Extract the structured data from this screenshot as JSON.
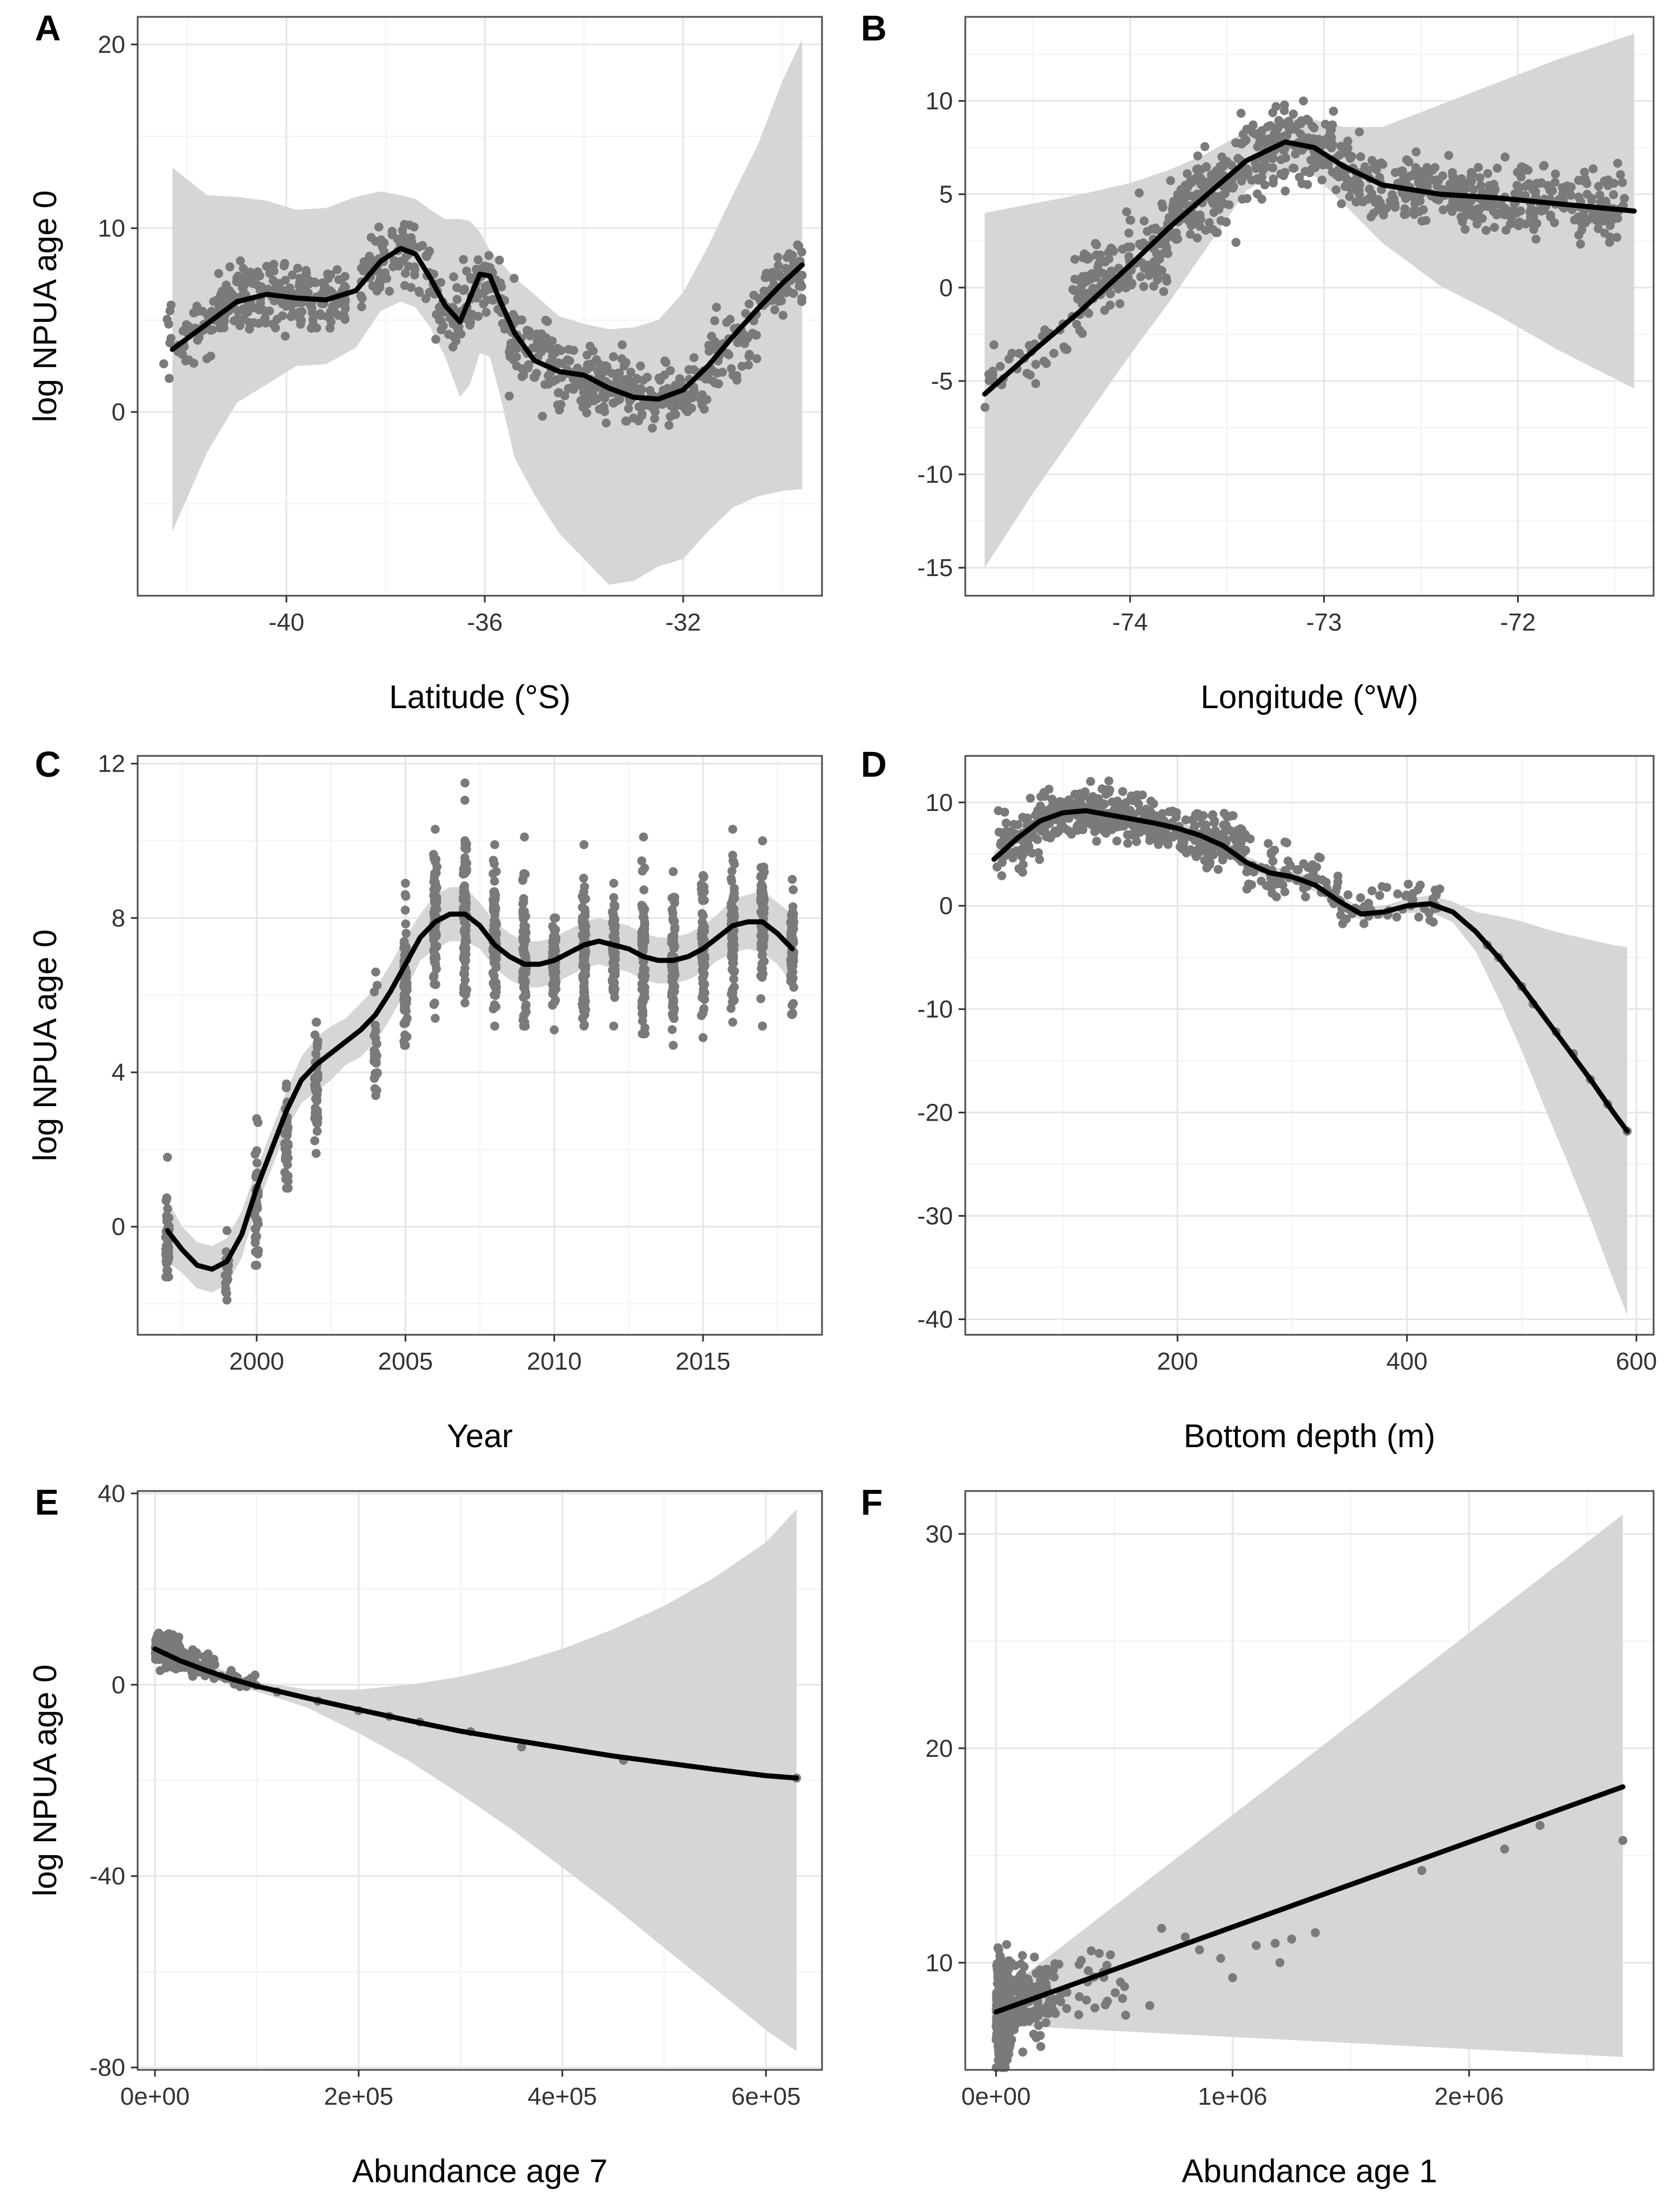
{
  "figure": {
    "style": {
      "point_color": "#7a7a7a",
      "band_color": "#d6d6d6",
      "line_color": "#000000",
      "grid_color": "#e6e6e6",
      "frame_color": "#4d4d4d"
    }
  },
  "chart_data": [
    {
      "panel": "A",
      "type": "scatter",
      "xlabel": "Latitude (°S)",
      "ylabel": "log NPUA age 0",
      "xlim": [
        -43,
        -29.2
      ],
      "ylim": [
        -10,
        21.5
      ],
      "xticks": [
        -40,
        -36,
        -32
      ],
      "xtick_labels": [
        "-40",
        "-36",
        "-32"
      ],
      "yticks": [
        0,
        10,
        20
      ],
      "ytick_labels": [
        "0",
        "10",
        "20"
      ],
      "fit": {
        "x": [
          -42.3,
          -41.6,
          -41,
          -40.4,
          -39.8,
          -39.2,
          -38.6,
          -38.1,
          -37.7,
          -37.4,
          -37.1,
          -36.8,
          -36.5,
          -36.3,
          -36.1,
          -35.9,
          -35.7,
          -35.4,
          -35,
          -34.5,
          -34,
          -33.5,
          -33,
          -32.5,
          -32,
          -31.5,
          -31,
          -30.5,
          -30,
          -29.6
        ],
        "y": [
          3.4,
          4.8,
          6.0,
          6.4,
          6.2,
          6.1,
          6.6,
          8.2,
          8.9,
          8.6,
          7.3,
          5.8,
          4.9,
          6.2,
          7.5,
          7.4,
          6.1,
          4.3,
          2.8,
          2.2,
          2.0,
          1.3,
          0.8,
          0.7,
          1.2,
          2.5,
          4.1,
          5.6,
          7.0,
          8.0
        ]
      },
      "ci_upper": [
        13.3,
        11.8,
        11.7,
        11.5,
        11.0,
        11.1,
        11.7,
        12.0,
        11.8,
        11.6,
        11.0,
        10.5,
        10.5,
        10.4,
        9.8,
        8.8,
        8.2,
        7.3,
        6.4,
        5.2,
        4.8,
        4.5,
        4.6,
        5.0,
        6.5,
        9.0,
        11.8,
        14.5,
        18.0,
        20.3
      ],
      "ci_lower": [
        -6.5,
        -2.2,
        0.5,
        1.5,
        2.5,
        2.6,
        3.5,
        5.5,
        6.0,
        5.7,
        4.6,
        3.0,
        0.8,
        1.5,
        3.2,
        3.0,
        1.0,
        -2.5,
        -4.5,
        -6.6,
        -8.0,
        -9.4,
        -9.2,
        -8.4,
        -8.0,
        -6.5,
        -5.2,
        -4.6,
        -4.3,
        -4.2
      ],
      "scatter_groups": [
        {
          "x": [
            -42.5,
            -41.5
          ],
          "n": 40,
          "mean": 4.3,
          "sd": 0.9
        },
        {
          "x": [
            -41.5,
            -38.8
          ],
          "n": 230,
          "mean": 6.2,
          "sd": 0.9
        },
        {
          "x": [
            -38.5,
            -37.0
          ],
          "n": 90,
          "mean": 8.4,
          "sd": 1.0
        },
        {
          "x": [
            -37.0,
            -36.3
          ],
          "n": 45,
          "mean": 5.2,
          "sd": 1.0
        },
        {
          "x": [
            -36.3,
            -35.6
          ],
          "n": 50,
          "mean": 7.2,
          "sd": 1.0
        },
        {
          "x": [
            -35.6,
            -34.5
          ],
          "n": 90,
          "mean": 3.4,
          "sd": 1.1
        },
        {
          "x": [
            -34.5,
            -33.0
          ],
          "n": 130,
          "mean": 1.6,
          "sd": 0.9
        },
        {
          "x": [
            -33.0,
            -31.5
          ],
          "n": 100,
          "mean": 0.7,
          "sd": 0.8
        },
        {
          "x": [
            -31.5,
            -30.5
          ],
          "n": 60,
          "mean": 3.2,
          "sd": 0.9
        },
        {
          "x": [
            -30.5,
            -29.6
          ],
          "n": 60,
          "mean": 7.0,
          "sd": 0.9
        }
      ]
    },
    {
      "panel": "B",
      "type": "scatter",
      "xlabel": "Longitude (°W)",
      "ylabel": "",
      "xlim": [
        -74.85,
        -71.3
      ],
      "ylim": [
        -16.5,
        14.5
      ],
      "xticks": [
        -74,
        -73,
        -72
      ],
      "xtick_labels": [
        "-74",
        "-73",
        "-72"
      ],
      "yticks": [
        -15,
        -10,
        -5,
        0,
        5,
        10
      ],
      "ytick_labels": [
        "-15",
        "-10",
        "-5",
        "0",
        "5",
        "10"
      ],
      "fit": {
        "x": [
          -74.75,
          -74.5,
          -74.25,
          -74,
          -73.8,
          -73.6,
          -73.4,
          -73.2,
          -73.05,
          -72.9,
          -72.7,
          -72.4,
          -72.1,
          -71.8,
          -71.4
        ],
        "y": [
          -5.7,
          -3.4,
          -1.2,
          1.2,
          3.2,
          5.0,
          6.8,
          7.8,
          7.5,
          6.5,
          5.5,
          5.0,
          4.8,
          4.5,
          4.1
        ]
      },
      "ci_upper": [
        4.0,
        4.5,
        5.0,
        5.6,
        6.3,
        7.2,
        8.4,
        9.1,
        9.0,
        8.6,
        8.6,
        9.8,
        11.0,
        12.2,
        13.6
      ],
      "ci_lower": [
        -15.0,
        -11.0,
        -7.3,
        -3.6,
        -0.8,
        2.2,
        5.2,
        6.4,
        6.0,
        4.5,
        2.4,
        0.1,
        -1.5,
        -3.3,
        -5.4
      ],
      "scatter_groups": [
        {
          "x": [
            -74.75,
            -74.3
          ],
          "n": 35,
          "mean": -4.0,
          "sd": 1.0
        },
        {
          "x": [
            -74.3,
            -73.8
          ],
          "n": 160,
          "mean": 0.9,
          "sd": 1.2
        },
        {
          "x": [
            -73.8,
            -73.45
          ],
          "n": 140,
          "mean": 4.6,
          "sd": 1.1
        },
        {
          "x": [
            -73.45,
            -72.95
          ],
          "n": 170,
          "mean": 7.5,
          "sd": 1.1
        },
        {
          "x": [
            -72.95,
            -72.3
          ],
          "n": 150,
          "mean": 5.4,
          "sd": 0.9
        },
        {
          "x": [
            -72.3,
            -71.45
          ],
          "n": 220,
          "mean": 4.6,
          "sd": 0.9
        }
      ]
    },
    {
      "panel": "C",
      "type": "scatter",
      "xlabel": "Year",
      "ylabel": "log NPUA age 0",
      "xlim": [
        1996,
        2019
      ],
      "ylim": [
        -2.8,
        12.2
      ],
      "xticks": [
        2000,
        2005,
        2010,
        2015
      ],
      "xtick_labels": [
        "2000",
        "2005",
        "2010",
        "2015"
      ],
      "yticks": [
        0,
        4,
        8,
        12
      ],
      "ytick_labels": [
        "0",
        "4",
        "8",
        "12"
      ],
      "fit": {
        "x": [
          1997,
          1997.5,
          1998,
          1998.5,
          1999,
          1999.5,
          2000,
          2000.5,
          2001,
          2001.5,
          2002,
          2002.5,
          2003,
          2003.5,
          2004,
          2004.5,
          2005,
          2005.5,
          2006,
          2006.5,
          2007,
          2007.5,
          2008,
          2008.5,
          2009,
          2009.5,
          2010,
          2010.5,
          2011,
          2011.5,
          2012,
          2012.5,
          2013,
          2013.5,
          2014,
          2014.5,
          2015,
          2015.5,
          2016,
          2016.5,
          2017,
          2017.5,
          2018
        ],
        "y": [
          -0.1,
          -0.6,
          -1.0,
          -1.1,
          -0.9,
          -0.2,
          1.0,
          2.0,
          3.0,
          3.8,
          4.2,
          4.5,
          4.8,
          5.1,
          5.5,
          6.1,
          6.8,
          7.5,
          7.9,
          8.1,
          8.1,
          7.8,
          7.3,
          7.0,
          6.8,
          6.8,
          6.9,
          7.1,
          7.3,
          7.4,
          7.3,
          7.2,
          7.0,
          6.9,
          6.9,
          7.0,
          7.2,
          7.5,
          7.8,
          7.9,
          7.9,
          7.6,
          7.2
        ]
      },
      "ci_upper": [
        0.7,
        0.0,
        -0.4,
        -0.5,
        -0.3,
        0.4,
        1.5,
        2.5,
        3.5,
        4.4,
        4.9,
        5.2,
        5.4,
        5.8,
        6.2,
        6.8,
        7.5,
        8.1,
        8.6,
        8.8,
        8.8,
        8.4,
        7.9,
        7.6,
        7.4,
        7.4,
        7.5,
        7.7,
        7.9,
        8.0,
        7.9,
        7.8,
        7.6,
        7.5,
        7.5,
        7.6,
        7.8,
        8.1,
        8.5,
        8.6,
        8.7,
        8.4,
        8.1
      ],
      "ci_lower": [
        -0.9,
        -1.2,
        -1.6,
        -1.7,
        -1.5,
        -0.8,
        0.5,
        1.5,
        2.5,
        3.2,
        3.5,
        3.8,
        4.2,
        4.4,
        4.8,
        5.4,
        6.1,
        6.9,
        7.2,
        7.4,
        7.4,
        7.2,
        6.7,
        6.4,
        6.2,
        6.2,
        6.3,
        6.5,
        6.7,
        6.8,
        6.7,
        6.6,
        6.4,
        6.3,
        6.3,
        6.4,
        6.6,
        6.9,
        7.1,
        7.2,
        7.1,
        6.8,
        6.3
      ],
      "scatter_columns": {
        "years": [
          1997,
          1999,
          2000,
          2001,
          2002,
          2004,
          2005,
          2006,
          2007,
          2008,
          2009,
          2010,
          2011,
          2012,
          2013,
          2014,
          2015,
          2016,
          2017,
          2018
        ],
        "y_min": [
          -1.3,
          -1.9,
          -1.0,
          1.0,
          1.9,
          3.4,
          4.7,
          5.4,
          5.8,
          5.2,
          5.2,
          5.1,
          5.2,
          5.2,
          5.0,
          4.7,
          4.9,
          5.3,
          5.2,
          5.5
        ],
        "y_max": [
          1.8,
          -0.1,
          2.8,
          3.7,
          5.3,
          6.6,
          8.9,
          10.3,
          11.5,
          9.9,
          10.1,
          8.0,
          9.9,
          8.9,
          10.1,
          9.2,
          9.1,
          10.3,
          10.0,
          9.0
        ],
        "y_center": [
          -0.3,
          -1.1,
          0.5,
          2.3,
          3.6,
          4.5,
          6.5,
          8.0,
          8.2,
          7.5,
          7.1,
          6.8,
          7.1,
          7.3,
          7.0,
          6.8,
          7.1,
          7.5,
          7.8,
          7.3
        ],
        "n": [
          50,
          18,
          40,
          45,
          55,
          25,
          70,
          80,
          90,
          80,
          80,
          70,
          80,
          70,
          80,
          80,
          70,
          70,
          70,
          70
        ]
      }
    },
    {
      "panel": "D",
      "type": "scatter",
      "xlabel": "Bottom depth (m)",
      "ylabel": "",
      "xlim": [
        15,
        615
      ],
      "ylim": [
        -41.5,
        14.5
      ],
      "xticks": [
        200,
        400,
        600
      ],
      "xtick_labels": [
        "200",
        "400",
        "600"
      ],
      "yticks": [
        -40,
        -30,
        -20,
        -10,
        0,
        10
      ],
      "ytick_labels": [
        "-40",
        "-30",
        "-20",
        "-10",
        "0",
        "10"
      ],
      "fit": {
        "x": [
          40,
          60,
          80,
          100,
          120,
          140,
          160,
          180,
          200,
          220,
          240,
          260,
          280,
          300,
          320,
          340,
          360,
          380,
          400,
          420,
          440,
          460,
          480,
          500,
          520,
          540,
          560,
          580,
          592
        ],
        "y": [
          4.5,
          6.5,
          8.2,
          9.0,
          9.2,
          8.8,
          8.4,
          8.0,
          7.5,
          6.8,
          5.8,
          4.2,
          3.2,
          2.8,
          2.0,
          0.5,
          -0.8,
          -0.6,
          0.0,
          0.2,
          -0.6,
          -2.5,
          -5.0,
          -7.8,
          -10.8,
          -13.8,
          -16.8,
          -20.0,
          -21.8
        ]
      },
      "ci_upper": [
        5.2,
        7.1,
        8.8,
        9.6,
        9.8,
        9.4,
        9.0,
        8.6,
        8.1,
        7.4,
        6.4,
        4.8,
        3.8,
        3.4,
        2.6,
        1.1,
        -0.2,
        0.0,
        0.7,
        1.0,
        0.4,
        -0.6,
        -1.0,
        -1.5,
        -2.2,
        -2.8,
        -3.3,
        -3.8,
        -4.0
      ],
      "ci_lower": [
        3.8,
        5.9,
        7.6,
        8.4,
        8.6,
        8.2,
        7.8,
        7.4,
        6.9,
        6.2,
        5.2,
        3.6,
        2.6,
        2.2,
        1.4,
        -0.1,
        -1.4,
        -1.2,
        -0.7,
        -0.6,
        -1.6,
        -4.4,
        -9.0,
        -14.0,
        -19.5,
        -24.8,
        -30.3,
        -36.2,
        -39.6
      ],
      "scatter_groups": [
        {
          "x": [
            40,
            80
          ],
          "n": 80,
          "mean": 6.3,
          "sd": 1.5
        },
        {
          "x": [
            80,
            180
          ],
          "n": 240,
          "mean": 8.8,
          "sd": 1.2
        },
        {
          "x": [
            180,
            260
          ],
          "n": 150,
          "mean": 6.8,
          "sd": 1.3
        },
        {
          "x": [
            260,
            340
          ],
          "n": 80,
          "mean": 3.0,
          "sd": 1.2
        },
        {
          "x": [
            340,
            430
          ],
          "n": 50,
          "mean": 0.3,
          "sd": 1.0
        }
      ],
      "scatter_points": {
        "x": [
          470,
          480,
          500,
          510,
          530,
          545,
          560,
          575,
          592
        ],
        "y": [
          -3.8,
          -5.0,
          -7.8,
          -9.5,
          -12.2,
          -14.3,
          -16.8,
          -19.2,
          -21.8
        ]
      }
    },
    {
      "panel": "E",
      "type": "scatter",
      "xlabel": "Abundance age 7",
      "ylabel": "log NPUA age 0",
      "xlim": [
        -17000,
        655000
      ],
      "ylim": [
        -80.5,
        40.5
      ],
      "xticks": [
        0,
        200000,
        400000,
        600000
      ],
      "xtick_labels": [
        "0e+00",
        "2e+05",
        "4e+05",
        "6e+05"
      ],
      "yticks": [
        -80,
        -40,
        0,
        40
      ],
      "ytick_labels": [
        "-80",
        "-40",
        "0",
        "40"
      ],
      "fit": {
        "x": [
          0,
          25000,
          50000,
          75000,
          100000,
          150000,
          200000,
          250000,
          300000,
          350000,
          400000,
          450000,
          500000,
          550000,
          600000,
          630000
        ],
        "y": [
          7.5,
          5.0,
          3.0,
          1.2,
          -0.3,
          -2.8,
          -5.2,
          -7.5,
          -9.7,
          -11.5,
          -13.2,
          -14.9,
          -16.3,
          -17.7,
          -19.0,
          -19.5
        ]
      },
      "ci_upper": [
        9.5,
        6.7,
        4.4,
        2.4,
        0.6,
        -1.0,
        -1.0,
        0.0,
        1.7,
        4.2,
        7.5,
        11.6,
        16.5,
        22.5,
        29.8,
        36.7
      ],
      "ci_lower": [
        5.8,
        3.4,
        1.6,
        0.0,
        -1.4,
        -4.8,
        -10.1,
        -16.0,
        -22.9,
        -30.2,
        -38.2,
        -46.3,
        -55.0,
        -63.5,
        -72.2,
        -76.6
      ],
      "scatter_groups": [
        {
          "x": [
            0,
            25000
          ],
          "n": 250,
          "mean": 8.0,
          "sd": 1.4
        },
        {
          "x": [
            25000,
            60000
          ],
          "n": 60,
          "mean": 5.2,
          "sd": 1.2
        },
        {
          "x": [
            60000,
            100000
          ],
          "n": 20,
          "mean": 1.8,
          "sd": 0.9
        }
      ],
      "scatter_points": {
        "x": [
          120000,
          160000,
          200000,
          230000,
          260000,
          310000,
          360000,
          460000,
          630000
        ],
        "y": [
          -1.5,
          -3.4,
          -5.4,
          -6.6,
          -7.8,
          -9.8,
          -13.0,
          -15.8,
          -19.5
        ]
      }
    },
    {
      "panel": "F",
      "type": "scatter",
      "xlabel": "Abundance age 1",
      "ylabel": "",
      "xlim": [
        -130000,
        2780000
      ],
      "ylim": [
        5.0,
        32.0
      ],
      "xticks": [
        0,
        1000000,
        2000000
      ],
      "xtick_labels": [
        "0e+00",
        "1e+06",
        "2e+06"
      ],
      "yticks": [
        10,
        20,
        30
      ],
      "ytick_labels": [
        "10",
        "20",
        "30"
      ],
      "fit": {
        "x": [
          0,
          2650000
        ],
        "y": [
          7.7,
          18.2
        ]
      },
      "ci_upper": [
        8.4,
        30.9
      ],
      "ci_lower": [
        7.1,
        5.6
      ],
      "scatter_groups": [
        {
          "x": [
            0,
            60000
          ],
          "n": 380,
          "mean": 7.6,
          "sd": 1.1
        },
        {
          "x": [
            60000,
            250000
          ],
          "n": 120,
          "mean": 8.3,
          "sd": 0.9
        },
        {
          "x": [
            250000,
            550000
          ],
          "n": 30,
          "mean": 8.8,
          "sd": 0.8
        }
      ],
      "scatter_points": {
        "x": [
          650000,
          700000,
          800000,
          860000,
          950000,
          1000000,
          1100000,
          1180000,
          1200000,
          1250000,
          1350000,
          1800000,
          2150000,
          2300000,
          2650000
        ],
        "y": [
          8.0,
          11.6,
          11.2,
          10.6,
          10.2,
          9.3,
          10.8,
          10.9,
          10.0,
          11.1,
          11.4,
          14.3,
          15.3,
          16.4,
          15.7
        ]
      }
    }
  ]
}
